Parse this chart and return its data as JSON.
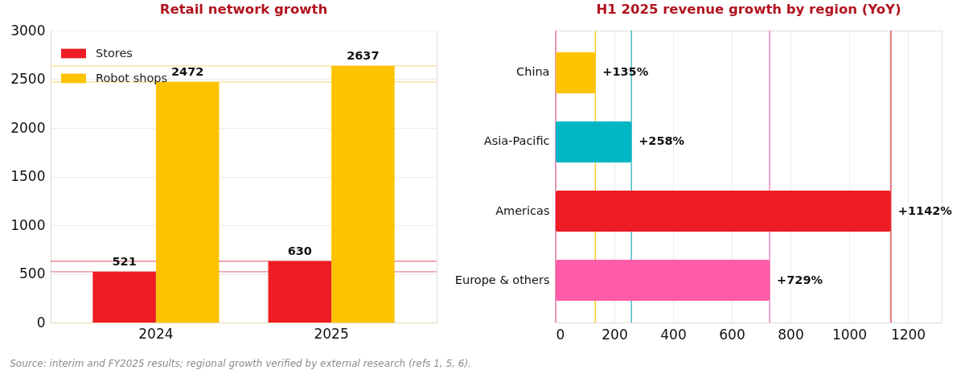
{
  "chart_data": [
    {
      "type": "bar",
      "title": "Retail network growth",
      "categories": [
        "2024",
        "2025"
      ],
      "series": [
        {
          "name": "Stores",
          "color": "#ee1c25",
          "values": [
            521,
            630
          ]
        },
        {
          "name": "Robot shops",
          "color": "#fdc300",
          "values": [
            2472,
            2637
          ]
        }
      ],
      "ylim": [
        0,
        3000
      ],
      "yticks": [
        0,
        500,
        1000,
        1500,
        2000,
        2500,
        3000
      ],
      "grid": "y",
      "legend": "top left",
      "data_labels": true,
      "ref_lines": [
        {
          "axis": "y",
          "value": 521,
          "color": "#e88a90"
        },
        {
          "axis": "y",
          "value": 630,
          "color": "#e88a90"
        },
        {
          "axis": "y",
          "value": 2472,
          "color": "#fbe08a"
        },
        {
          "axis": "y",
          "value": 2637,
          "color": "#fbe08a"
        }
      ],
      "annotations": [
        "Source: interim and FY2025 results; regional growth verified by external research (refs 1, 5, 6)."
      ]
    },
    {
      "type": "bar",
      "orientation": "horizontal",
      "title": "H1 2025 revenue growth by region (YoY)",
      "categories": [
        "China",
        "Asia-Pacific",
        "Americas",
        "Europe & others"
      ],
      "values": [
        135,
        258,
        1142,
        729
      ],
      "colors": [
        "#fdc300",
        "#00b7c3",
        "#ee1c25",
        "#ff5ca8"
      ],
      "value_labels": [
        "+135%",
        "+258%",
        "+1142%",
        "+729%"
      ],
      "xlim": [
        0,
        1315
      ],
      "xticks": [
        0,
        200,
        400,
        600,
        800,
        1000,
        1200
      ],
      "grid": "x",
      "ref_lines": [
        {
          "axis": "x",
          "value": 0,
          "color": "#e0609a"
        },
        {
          "axis": "x",
          "value": 135,
          "color": "#f5c518"
        },
        {
          "axis": "x",
          "value": 258,
          "color": "#2ab5be"
        },
        {
          "axis": "x",
          "value": 1142,
          "color": "#d9333c"
        },
        {
          "axis": "x",
          "value": 729,
          "color": "#ef6fae"
        }
      ]
    }
  ]
}
